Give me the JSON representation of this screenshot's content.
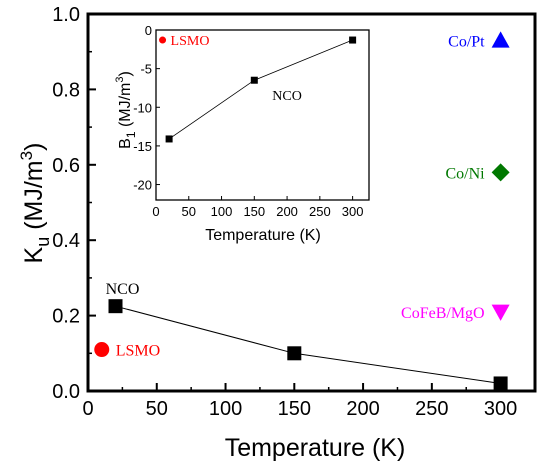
{
  "chart_data": [
    {
      "type": "scatter",
      "xlabel": "Temperature (K)",
      "ylabel": "K_u (MJ/m^3)",
      "xlim": [
        0,
        325
      ],
      "ylim": [
        0,
        1.0
      ],
      "xticks": [
        "0",
        "50",
        "100",
        "150",
        "200",
        "250",
        "300"
      ],
      "yticks": [
        "0.0",
        "0.2",
        "0.4",
        "0.6",
        "0.8",
        "1.0"
      ],
      "series": [
        {
          "name": "NCO",
          "x": [
            20,
            150,
            300
          ],
          "y": [
            0.225,
            0.1,
            0.02
          ],
          "marker": "square",
          "color": "#000000",
          "connected": true
        },
        {
          "name": "LSMO",
          "x": [
            10
          ],
          "y": [
            0.11
          ],
          "marker": "circle",
          "color": "#ff0000"
        },
        {
          "name": "Co/Pt",
          "x": [
            300
          ],
          "y": [
            0.93
          ],
          "marker": "triangle-up",
          "color": "#0000ff"
        },
        {
          "name": "Co/Ni",
          "x": [
            300
          ],
          "y": [
            0.58
          ],
          "marker": "diamond",
          "color": "#007800"
        },
        {
          "name": "CoFeB/MgO",
          "x": [
            300
          ],
          "y": [
            0.21
          ],
          "marker": "triangle-down",
          "color": "#ff00ff"
        }
      ]
    },
    {
      "type": "line",
      "xlabel": "Temperature (K)",
      "ylabel": "B_1 (MJ/m^3)",
      "xlim": [
        0,
        325
      ],
      "ylim": [
        -22,
        0
      ],
      "xticks": [
        "0",
        "50",
        "100",
        "150",
        "200",
        "250",
        "300"
      ],
      "yticks": [
        "0",
        "-5",
        "-10",
        "-15",
        "-20"
      ],
      "series": [
        {
          "name": "NCO",
          "x": [
            20,
            150,
            300
          ],
          "y": [
            -14.1,
            -6.5,
            -1.3
          ],
          "marker": "square",
          "color": "#000000"
        },
        {
          "name": "LSMO",
          "x": [
            10
          ],
          "y": [
            -1.3
          ],
          "marker": "circle",
          "color": "#ff0000"
        }
      ]
    }
  ]
}
